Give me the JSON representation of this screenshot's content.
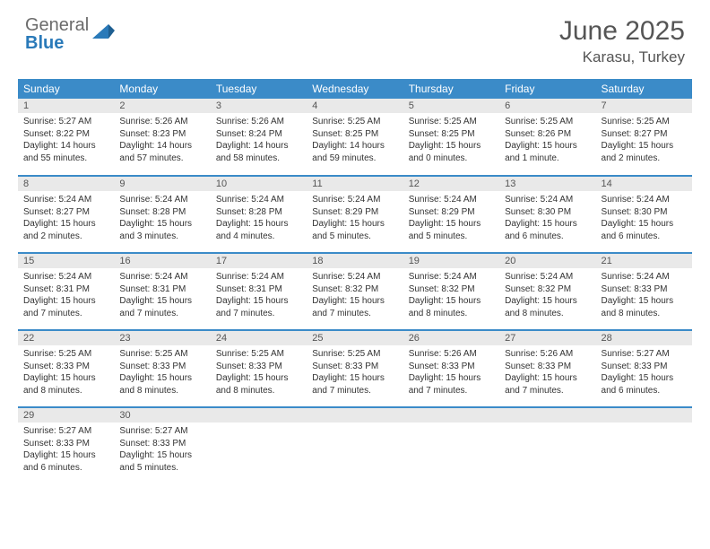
{
  "logo": {
    "text_gray": "General",
    "text_blue": "Blue"
  },
  "title": "June 2025",
  "location": "Karasu, Turkey",
  "colors": {
    "header_bg": "#3b8bc8",
    "header_text": "#ffffff",
    "daynum_bg": "#e9e9e9",
    "row_divider": "#3b8bc8",
    "text": "#333333",
    "title": "#555555"
  },
  "weekdays": [
    "Sunday",
    "Monday",
    "Tuesday",
    "Wednesday",
    "Thursday",
    "Friday",
    "Saturday"
  ],
  "weeks": [
    [
      {
        "n": "1",
        "sr": "Sunrise: 5:27 AM",
        "ss": "Sunset: 8:22 PM",
        "d1": "Daylight: 14 hours",
        "d2": "and 55 minutes."
      },
      {
        "n": "2",
        "sr": "Sunrise: 5:26 AM",
        "ss": "Sunset: 8:23 PM",
        "d1": "Daylight: 14 hours",
        "d2": "and 57 minutes."
      },
      {
        "n": "3",
        "sr": "Sunrise: 5:26 AM",
        "ss": "Sunset: 8:24 PM",
        "d1": "Daylight: 14 hours",
        "d2": "and 58 minutes."
      },
      {
        "n": "4",
        "sr": "Sunrise: 5:25 AM",
        "ss": "Sunset: 8:25 PM",
        "d1": "Daylight: 14 hours",
        "d2": "and 59 minutes."
      },
      {
        "n": "5",
        "sr": "Sunrise: 5:25 AM",
        "ss": "Sunset: 8:25 PM",
        "d1": "Daylight: 15 hours",
        "d2": "and 0 minutes."
      },
      {
        "n": "6",
        "sr": "Sunrise: 5:25 AM",
        "ss": "Sunset: 8:26 PM",
        "d1": "Daylight: 15 hours",
        "d2": "and 1 minute."
      },
      {
        "n": "7",
        "sr": "Sunrise: 5:25 AM",
        "ss": "Sunset: 8:27 PM",
        "d1": "Daylight: 15 hours",
        "d2": "and 2 minutes."
      }
    ],
    [
      {
        "n": "8",
        "sr": "Sunrise: 5:24 AM",
        "ss": "Sunset: 8:27 PM",
        "d1": "Daylight: 15 hours",
        "d2": "and 2 minutes."
      },
      {
        "n": "9",
        "sr": "Sunrise: 5:24 AM",
        "ss": "Sunset: 8:28 PM",
        "d1": "Daylight: 15 hours",
        "d2": "and 3 minutes."
      },
      {
        "n": "10",
        "sr": "Sunrise: 5:24 AM",
        "ss": "Sunset: 8:28 PM",
        "d1": "Daylight: 15 hours",
        "d2": "and 4 minutes."
      },
      {
        "n": "11",
        "sr": "Sunrise: 5:24 AM",
        "ss": "Sunset: 8:29 PM",
        "d1": "Daylight: 15 hours",
        "d2": "and 5 minutes."
      },
      {
        "n": "12",
        "sr": "Sunrise: 5:24 AM",
        "ss": "Sunset: 8:29 PM",
        "d1": "Daylight: 15 hours",
        "d2": "and 5 minutes."
      },
      {
        "n": "13",
        "sr": "Sunrise: 5:24 AM",
        "ss": "Sunset: 8:30 PM",
        "d1": "Daylight: 15 hours",
        "d2": "and 6 minutes."
      },
      {
        "n": "14",
        "sr": "Sunrise: 5:24 AM",
        "ss": "Sunset: 8:30 PM",
        "d1": "Daylight: 15 hours",
        "d2": "and 6 minutes."
      }
    ],
    [
      {
        "n": "15",
        "sr": "Sunrise: 5:24 AM",
        "ss": "Sunset: 8:31 PM",
        "d1": "Daylight: 15 hours",
        "d2": "and 7 minutes."
      },
      {
        "n": "16",
        "sr": "Sunrise: 5:24 AM",
        "ss": "Sunset: 8:31 PM",
        "d1": "Daylight: 15 hours",
        "d2": "and 7 minutes."
      },
      {
        "n": "17",
        "sr": "Sunrise: 5:24 AM",
        "ss": "Sunset: 8:31 PM",
        "d1": "Daylight: 15 hours",
        "d2": "and 7 minutes."
      },
      {
        "n": "18",
        "sr": "Sunrise: 5:24 AM",
        "ss": "Sunset: 8:32 PM",
        "d1": "Daylight: 15 hours",
        "d2": "and 7 minutes."
      },
      {
        "n": "19",
        "sr": "Sunrise: 5:24 AM",
        "ss": "Sunset: 8:32 PM",
        "d1": "Daylight: 15 hours",
        "d2": "and 8 minutes."
      },
      {
        "n": "20",
        "sr": "Sunrise: 5:24 AM",
        "ss": "Sunset: 8:32 PM",
        "d1": "Daylight: 15 hours",
        "d2": "and 8 minutes."
      },
      {
        "n": "21",
        "sr": "Sunrise: 5:24 AM",
        "ss": "Sunset: 8:33 PM",
        "d1": "Daylight: 15 hours",
        "d2": "and 8 minutes."
      }
    ],
    [
      {
        "n": "22",
        "sr": "Sunrise: 5:25 AM",
        "ss": "Sunset: 8:33 PM",
        "d1": "Daylight: 15 hours",
        "d2": "and 8 minutes."
      },
      {
        "n": "23",
        "sr": "Sunrise: 5:25 AM",
        "ss": "Sunset: 8:33 PM",
        "d1": "Daylight: 15 hours",
        "d2": "and 8 minutes."
      },
      {
        "n": "24",
        "sr": "Sunrise: 5:25 AM",
        "ss": "Sunset: 8:33 PM",
        "d1": "Daylight: 15 hours",
        "d2": "and 8 minutes."
      },
      {
        "n": "25",
        "sr": "Sunrise: 5:25 AM",
        "ss": "Sunset: 8:33 PM",
        "d1": "Daylight: 15 hours",
        "d2": "and 7 minutes."
      },
      {
        "n": "26",
        "sr": "Sunrise: 5:26 AM",
        "ss": "Sunset: 8:33 PM",
        "d1": "Daylight: 15 hours",
        "d2": "and 7 minutes."
      },
      {
        "n": "27",
        "sr": "Sunrise: 5:26 AM",
        "ss": "Sunset: 8:33 PM",
        "d1": "Daylight: 15 hours",
        "d2": "and 7 minutes."
      },
      {
        "n": "28",
        "sr": "Sunrise: 5:27 AM",
        "ss": "Sunset: 8:33 PM",
        "d1": "Daylight: 15 hours",
        "d2": "and 6 minutes."
      }
    ],
    [
      {
        "n": "29",
        "sr": "Sunrise: 5:27 AM",
        "ss": "Sunset: 8:33 PM",
        "d1": "Daylight: 15 hours",
        "d2": "and 6 minutes."
      },
      {
        "n": "30",
        "sr": "Sunrise: 5:27 AM",
        "ss": "Sunset: 8:33 PM",
        "d1": "Daylight: 15 hours",
        "d2": "and 5 minutes."
      },
      null,
      null,
      null,
      null,
      null
    ]
  ]
}
